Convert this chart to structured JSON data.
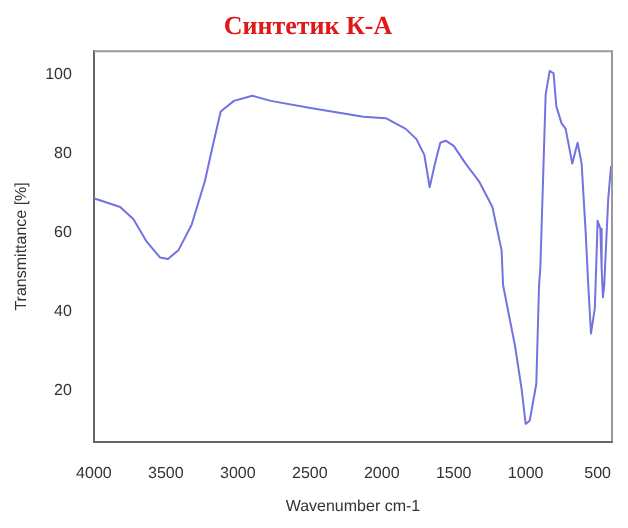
{
  "chart_data": {
    "type": "line",
    "title": "Синтетик К-А",
    "xlabel": "Wavenumber cm-1",
    "ylabel": "Transmittance [%]",
    "x": [
      4000,
      3817,
      3725,
      3633,
      3541,
      3486,
      3413,
      3321,
      3229,
      3174,
      3119,
      3027,
      2899,
      2771,
      2495,
      2128,
      1972,
      1833,
      1759,
      1704,
      1667,
      1630,
      1593,
      1556,
      1500,
      1417,
      1324,
      1231,
      1167,
      1157,
      1074,
      1028,
      1000,
      972,
      926,
      907,
      898,
      861,
      833,
      806,
      787,
      750,
      722,
      676,
      639,
      611,
      583,
      565,
      546,
      519,
      500,
      481,
      472,
      463,
      454,
      426,
      407,
      400
    ],
    "series": [
      {
        "color": "#7272e0",
        "values": [
          68.7,
          66.5,
          63.4,
          57.7,
          53.7,
          53.3,
          55.5,
          62,
          73,
          82,
          90.7,
          93.4,
          94.7,
          93.4,
          91.6,
          89.4,
          89,
          86.3,
          83.7,
          79.7,
          71.5,
          77.5,
          82.8,
          83.3,
          82,
          77.5,
          73,
          66.5,
          55.5,
          46.7,
          31.3,
          20.3,
          11.5,
          12.3,
          21.6,
          46.7,
          51,
          95,
          101,
          100.4,
          92,
          87.7,
          86.3,
          77.5,
          82.8,
          77.5,
          60,
          46.7,
          34.4,
          41,
          63,
          61,
          51,
          43.6,
          46.7,
          68.7,
          76.7,
          74.5
        ]
      }
    ],
    "xlim": [
      4000,
      400
    ],
    "xticks": [
      4000,
      3500,
      3000,
      2500,
      2000,
      1500,
      1000,
      500
    ],
    "ylim": [
      7,
      106
    ],
    "yticks": [
      20,
      40,
      60,
      80,
      100
    ],
    "grid": false,
    "legend": false,
    "marker": "none",
    "line_style": "solid"
  }
}
